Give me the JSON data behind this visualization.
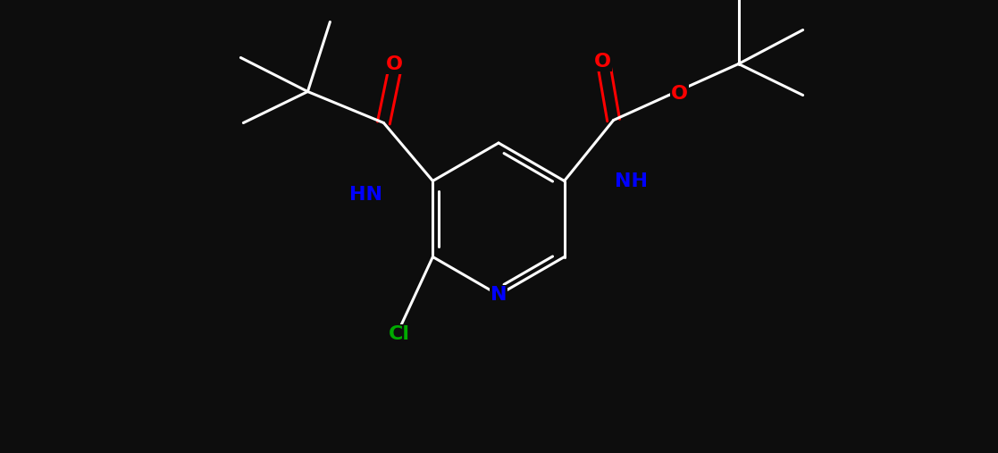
{
  "bg_color": "#0d0d0d",
  "bond_color": "#000000",
  "line_color": "#ffffff",
  "N_color": "#0000ff",
  "O_color": "#ff0000",
  "Cl_color": "#00aa00",
  "C_color": "#000000",
  "lw": 2.2,
  "font_size": 16,
  "xlim": [
    0,
    11.17
  ],
  "ylim": [
    0,
    5.07
  ]
}
